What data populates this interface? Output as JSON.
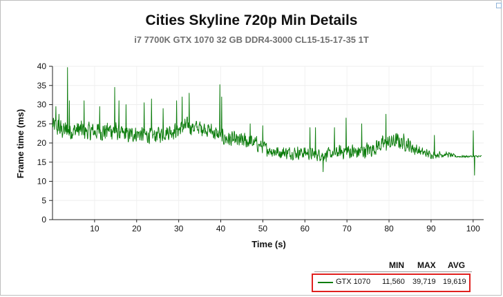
{
  "chart_data": {
    "type": "line",
    "title": "Cities Skyline 720p Min Details",
    "subtitle": "i7 7700K GTX 1070 32 GB DDR4-3000 CL15-15-17-35 1T",
    "xlabel": "Time (s)",
    "ylabel": "Frame time (ms)",
    "xlim": [
      0,
      102.5
    ],
    "ylim": [
      0,
      40
    ],
    "x_ticks": [
      10,
      20,
      30,
      40,
      50,
      60,
      70,
      80,
      90,
      100
    ],
    "y_ticks": [
      0,
      5,
      10,
      15,
      20,
      25,
      30,
      35,
      40
    ],
    "grid": "light",
    "series": [
      {
        "name": "GTX 1070",
        "color": "#0d7d0d",
        "x": [
          0,
          2,
          4,
          6,
          8,
          10,
          12,
          14,
          16,
          18,
          20,
          22,
          24,
          26,
          28,
          30,
          32,
          34,
          36,
          38,
          40,
          42,
          44,
          46,
          48,
          50,
          52,
          54,
          56,
          58,
          60,
          62,
          64,
          66,
          68,
          70,
          72,
          74,
          76,
          78,
          80,
          82,
          84,
          86,
          88,
          90,
          92,
          94,
          96,
          98,
          100,
          102
        ],
        "y": [
          24.5,
          23.5,
          23,
          23.5,
          23,
          23,
          23,
          23.5,
          22.5,
          22,
          22.5,
          22,
          22,
          22.5,
          23,
          23.5,
          24.5,
          24,
          24,
          23,
          21.5,
          21,
          20.5,
          20.5,
          20,
          19,
          18,
          17.5,
          17.5,
          17.5,
          17.5,
          17,
          17,
          17,
          17.5,
          18,
          17.5,
          18,
          18.5,
          19.5,
          20,
          20.5,
          20,
          18.5,
          17.5,
          17,
          17,
          17,
          16.5,
          16.5,
          16.5,
          16.5
        ],
        "noise": [
          3,
          3,
          3,
          3,
          3,
          3,
          3,
          3,
          2.5,
          2.5,
          2.5,
          2.5,
          2.5,
          2.5,
          2.5,
          2.5,
          2.5,
          2.5,
          2.5,
          2.5,
          2.5,
          2.5,
          2.5,
          2.5,
          2.5,
          2,
          2,
          2,
          2,
          2,
          2,
          2,
          2,
          2,
          2,
          2.5,
          2.5,
          2.5,
          2.5,
          2.5,
          2.5,
          2.5,
          2.5,
          2,
          1.5,
          1.2,
          1,
          0.8,
          0.5,
          0.4,
          0.3,
          0.3
        ],
        "spikes": [
          [
            0.8,
            29.5
          ],
          [
            1.5,
            27.5
          ],
          [
            3.6,
            39.7
          ],
          [
            4.0,
            31
          ],
          [
            7.5,
            31
          ],
          [
            11.2,
            29.5
          ],
          [
            14.8,
            34.5
          ],
          [
            15.8,
            31
          ],
          [
            17.5,
            30
          ],
          [
            21.8,
            30.5
          ],
          [
            23.5,
            31.5
          ],
          [
            26.3,
            29
          ],
          [
            29.5,
            31
          ],
          [
            30.8,
            32
          ],
          [
            32.5,
            33
          ],
          [
            39.8,
            35.2
          ],
          [
            40.2,
            32
          ],
          [
            47,
            25
          ],
          [
            50,
            24.5
          ],
          [
            61.2,
            24
          ],
          [
            62.5,
            24
          ],
          [
            64.3,
            12.5
          ],
          [
            67,
            24
          ],
          [
            69.8,
            26.5
          ],
          [
            73.5,
            25
          ],
          [
            79.3,
            27.5
          ],
          [
            90.8,
            22
          ],
          [
            100,
            23.2
          ],
          [
            100.3,
            11.6
          ]
        ]
      }
    ]
  },
  "legend": {
    "headers": {
      "min": "MIN",
      "max": "MAX",
      "avg": "AVG"
    },
    "rows": [
      {
        "name": "GTX 1070",
        "min": "11,560",
        "max": "39,719",
        "avg": "19,619",
        "color": "#0d7d0d"
      }
    ]
  }
}
